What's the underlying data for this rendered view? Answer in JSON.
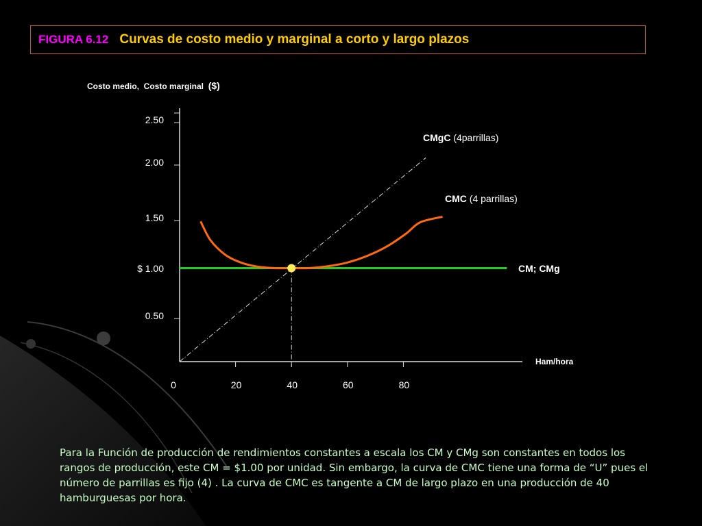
{
  "figure": {
    "label": "FIGURA 6.12",
    "title": "Curvas de costo medio y marginal a corto y largo plazos"
  },
  "chart_data": {
    "type": "line",
    "ylabel": "Costo medio,  Costo marginal",
    "ylabel_unit": "($)",
    "xlabel": "Ham/hora",
    "y_ticks": [
      {
        "value": 2.5,
        "label": "2.50"
      },
      {
        "value": 2.0,
        "label": "2.00"
      },
      {
        "value": 1.5,
        "label": "1.50"
      },
      {
        "value": 1.0,
        "label": "$ 1.00"
      },
      {
        "value": 0.5,
        "label": "0.50"
      }
    ],
    "x_ticks": [
      {
        "value": 0,
        "label": "0"
      },
      {
        "value": 20,
        "label": "20"
      },
      {
        "value": 40,
        "label": "40"
      },
      {
        "value": 60,
        "label": "60"
      },
      {
        "value": 80,
        "label": "80"
      }
    ],
    "xlim": [
      0,
      125
    ],
    "ylim": [
      0,
      2.6
    ],
    "series": [
      {
        "name": "CM; CMg",
        "name_bold": "CM; CMg",
        "name_rest": "",
        "color": "#22cc22",
        "style": "solid",
        "points": [
          [
            0,
            1.0
          ],
          [
            117,
            1.0
          ]
        ]
      },
      {
        "name": "CMC (4 parrillas)",
        "name_bold": "CMC",
        "name_rest": " (4 parrillas)",
        "color": "#ff6a10",
        "style": "solid",
        "points": [
          [
            7.5,
            1.5
          ],
          [
            11,
            1.3
          ],
          [
            16,
            1.15
          ],
          [
            21,
            1.07
          ],
          [
            27,
            1.02
          ],
          [
            34,
            1.0
          ],
          [
            40,
            1.0
          ],
          [
            46,
            1.0
          ],
          [
            53,
            1.02
          ],
          [
            60,
            1.06
          ],
          [
            67,
            1.13
          ],
          [
            74,
            1.23
          ],
          [
            81,
            1.37
          ],
          [
            86,
            1.49
          ],
          [
            94,
            1.55
          ]
        ]
      },
      {
        "name": "CMgC (4parrillas)",
        "name_bold": "CMgC",
        "name_rest": " (4parrillas)",
        "color": "#dddddd",
        "style": "dashdot",
        "points": [
          [
            0,
            0.0
          ],
          [
            88,
            2.18
          ]
        ]
      }
    ],
    "tangent_point": {
      "x": 40,
      "y": 1.0,
      "color": "#ffee55"
    }
  },
  "caption": "Para la Función de producción de rendimientos constantes a escala los CM y CMg son constantes en todos los rangos de producción, este CM = $1.00 por unidad. Sin embargo, la curva de CMC tiene una forma de “U” pues el número de parrillas es fijo (4) . La curva de CMC es tangente a CM de largo plazo en una producción de 40 hamburguesas por hora."
}
